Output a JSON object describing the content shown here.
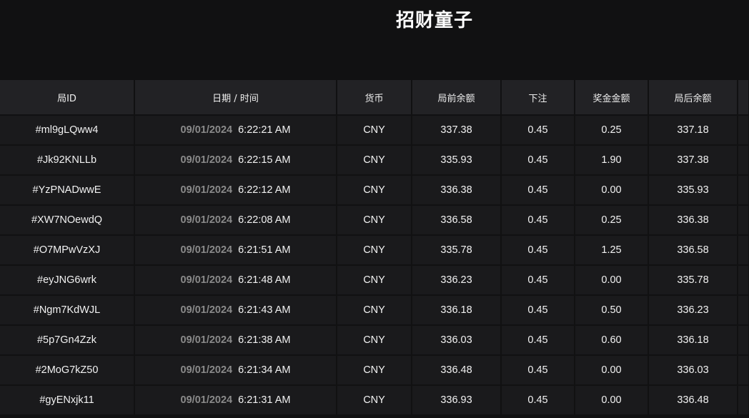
{
  "header": {
    "title": "招财童子"
  },
  "table": {
    "columns": [
      "局ID",
      "日期 / 时间",
      "货币",
      "局前余额",
      "下注",
      "奖金金额",
      "局后余额",
      ""
    ],
    "rows": [
      {
        "id": "#ml9gLQww4",
        "date": "09/01/2024",
        "time": "6:22:21 AM",
        "currency": "CNY",
        "before": "337.38",
        "bet": "0.45",
        "prize": "0.25",
        "after": "337.18"
      },
      {
        "id": "#Jk92KNLLb",
        "date": "09/01/2024",
        "time": "6:22:15 AM",
        "currency": "CNY",
        "before": "335.93",
        "bet": "0.45",
        "prize": "1.90",
        "after": "337.38"
      },
      {
        "id": "#YzPNADwwE",
        "date": "09/01/2024",
        "time": "6:22:12 AM",
        "currency": "CNY",
        "before": "336.38",
        "bet": "0.45",
        "prize": "0.00",
        "after": "335.93"
      },
      {
        "id": "#XW7NOewdQ",
        "date": "09/01/2024",
        "time": "6:22:08 AM",
        "currency": "CNY",
        "before": "336.58",
        "bet": "0.45",
        "prize": "0.25",
        "after": "336.38"
      },
      {
        "id": "#O7MPwVzXJ",
        "date": "09/01/2024",
        "time": "6:21:51 AM",
        "currency": "CNY",
        "before": "335.78",
        "bet": "0.45",
        "prize": "1.25",
        "after": "336.58"
      },
      {
        "id": "#eyJNG6wrk",
        "date": "09/01/2024",
        "time": "6:21:48 AM",
        "currency": "CNY",
        "before": "336.23",
        "bet": "0.45",
        "prize": "0.00",
        "after": "335.78"
      },
      {
        "id": "#Ngm7KdWJL",
        "date": "09/01/2024",
        "time": "6:21:43 AM",
        "currency": "CNY",
        "before": "336.18",
        "bet": "0.45",
        "prize": "0.50",
        "after": "336.23"
      },
      {
        "id": "#5p7Gn4Zzk",
        "date": "09/01/2024",
        "time": "6:21:38 AM",
        "currency": "CNY",
        "before": "336.03",
        "bet": "0.45",
        "prize": "0.60",
        "after": "336.18"
      },
      {
        "id": "#2MoG7kZ50",
        "date": "09/01/2024",
        "time": "6:21:34 AM",
        "currency": "CNY",
        "before": "336.48",
        "bet": "0.45",
        "prize": "0.00",
        "after": "336.03"
      },
      {
        "id": "#gyENxjk11",
        "date": "09/01/2024",
        "time": "6:21:31 AM",
        "currency": "CNY",
        "before": "336.93",
        "bet": "0.45",
        "prize": "0.00",
        "after": "336.48"
      }
    ]
  }
}
